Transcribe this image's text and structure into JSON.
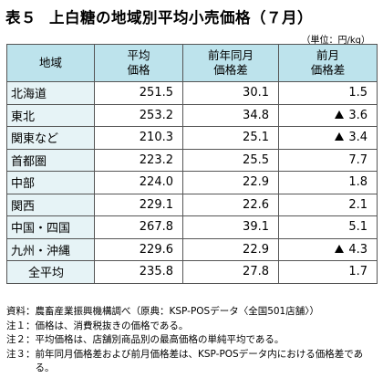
{
  "title": {
    "number": "表５",
    "text": "上白糖の地域別平均小売価格（７月）"
  },
  "unit": "（単位：円/kg）",
  "table": {
    "headers": {
      "region": "地域",
      "price": "平均\n価格",
      "yoy": "前年同月\n価格差",
      "mom": "前月\n価格差"
    },
    "rows": [
      {
        "region": "北海道",
        "price": "251.5",
        "yoy": "30.1",
        "mom": "1.5",
        "mom_negative": false
      },
      {
        "region": "東北",
        "price": "253.2",
        "yoy": "34.8",
        "mom": "3.6",
        "mom_negative": true
      },
      {
        "region": "関東など",
        "price": "210.3",
        "yoy": "25.1",
        "mom": "3.4",
        "mom_negative": true
      },
      {
        "region": "首都圏",
        "price": "223.2",
        "yoy": "25.5",
        "mom": "7.7",
        "mom_negative": false
      },
      {
        "region": "中部",
        "price": "224.0",
        "yoy": "22.9",
        "mom": "1.8",
        "mom_negative": false
      },
      {
        "region": "関西",
        "price": "229.1",
        "yoy": "22.6",
        "mom": "2.1",
        "mom_negative": false
      },
      {
        "region": "中国・四国",
        "price": "267.8",
        "yoy": "39.1",
        "mom": "5.1",
        "mom_negative": false
      },
      {
        "region": "九州・沖縄",
        "price": "229.6",
        "yoy": "22.9",
        "mom": "4.3",
        "mom_negative": true
      }
    ],
    "total": {
      "region": "全平均",
      "price": "235.8",
      "yoy": "27.8",
      "mom": "1.7",
      "mom_negative": false
    }
  },
  "notes": [
    {
      "label": "資料：",
      "text": "農畜産業振興機構調べ（原典：KSP-POSデータ〈全国501店舗〉）"
    },
    {
      "label": "注１：",
      "text": "価格は、消費税抜きの価格である。"
    },
    {
      "label": "注２：",
      "text": "平均価格は、店舗別商品別の最高価格の単純平均である。"
    },
    {
      "label": "注３：",
      "text": "前年同月価格差および前月価格差は、KSP-POSデータ内における価格差である。"
    }
  ]
}
